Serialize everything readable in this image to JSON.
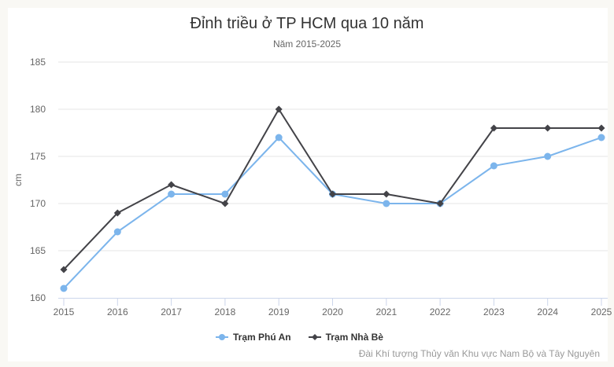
{
  "title": "Đỉnh triều ở TP HCM qua 10 năm",
  "subtitle": "Năm 2015-2025",
  "credits": "Đài Khí tượng Thủy văn Khu vực Nam Bộ và Tây Nguyên",
  "colors": {
    "background": "#f9f8f4",
    "panel": "#ffffff",
    "phu_an": "#7cb5ec",
    "nha_be": "#434348",
    "grid": "#e6e6e6",
    "axis": "#ccd6eb"
  },
  "legend": [
    {
      "label": "Trạm Phú An",
      "color": "#7cb5ec",
      "marker": "circle"
    },
    {
      "label": "Trạm Nhà Bè",
      "color": "#434348",
      "marker": "diamond"
    }
  ],
  "chart_data": {
    "type": "line",
    "title": "Đỉnh triều ở TP HCM qua 10 năm",
    "subtitle": "Năm 2015-2025",
    "xlabel": "",
    "ylabel": "cm",
    "x": [
      "2015",
      "2016",
      "2017",
      "2018",
      "2019",
      "2020",
      "2021",
      "2022",
      "2023",
      "2024",
      "2025"
    ],
    "series": [
      {
        "name": "Trạm Phú An",
        "color": "#7cb5ec",
        "marker": "circle",
        "values": [
          161,
          167,
          171,
          171,
          177,
          171,
          170,
          170,
          174,
          175,
          177
        ]
      },
      {
        "name": "Trạm Nhà Bè",
        "color": "#434348",
        "marker": "diamond",
        "values": [
          163,
          169,
          172,
          170,
          180,
          171,
          171,
          170,
          178,
          178,
          178
        ]
      }
    ],
    "yticks": [
      160,
      165,
      170,
      175,
      180,
      185
    ],
    "ylim": [
      160,
      185
    ],
    "grid": true,
    "legend_position": "bottom-center",
    "credits": "Đài Khí tượng Thủy văn Khu vực Nam Bộ và Tây Nguyên"
  }
}
